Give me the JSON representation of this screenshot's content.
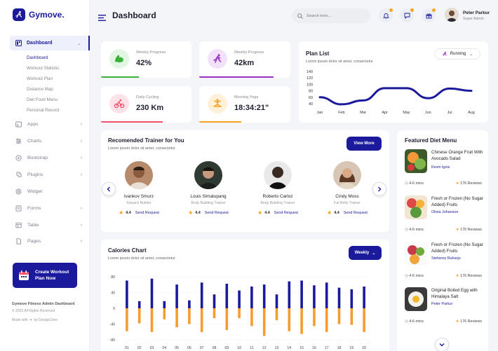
{
  "app": {
    "name": "Gymove."
  },
  "header": {
    "title": "Dashboard",
    "search_placeholder": "Search here...",
    "user_name": "Peter Parkur",
    "user_role": "Super Admin"
  },
  "sidebar": {
    "active": "Dashboard",
    "submenu": [
      "Dashboard",
      "Workout Statistic",
      "Workout Plan",
      "Distance Map",
      "Diet Food Menu",
      "Personal Record"
    ],
    "items": [
      "Apps",
      "Charts",
      "Bootstrap",
      "Plugins",
      "Widget",
      "Forms",
      "Table",
      "Pages"
    ],
    "promo": [
      "Create Workout",
      "Plan Now"
    ],
    "footer_title": "Gymove Fitness Admin Dashboard",
    "footer_copy": "© 2020 All Rights Reserved",
    "footer_made_a": "Made with",
    "footer_made_b": "by DesignZone"
  },
  "stats": [
    {
      "label": "Weekly Progress",
      "value": "42%",
      "color": "#3bb03a"
    },
    {
      "label": "Weekly Progress",
      "value": "42km",
      "color": "#9b2fc9"
    },
    {
      "label": "Daily Cycling",
      "value": "230 Km",
      "color": "#f24e6a"
    },
    {
      "label": "Morning Yoga",
      "value": "18:34:21\"",
      "color": "#f6a21d"
    }
  ],
  "plan_list": {
    "title": "Plan List",
    "subtitle": "Lorem ipsum dolor sit amet, consectetur",
    "dropdown": "Running"
  },
  "trainers": {
    "title": "Recomended Trainer for You",
    "subtitle": "Lorem ipsum dolor sit amet, consectetur",
    "button": "View More",
    "send_label": "Send Request",
    "list": [
      {
        "name": "Ivankov Smurz",
        "role": "Sixpack Builder",
        "rating": "4.4"
      },
      {
        "name": "Louis Simatupang",
        "role": "Body Building Trainer",
        "rating": "4.4"
      },
      {
        "name": "Roberto Carloz",
        "role": "Body Building Trainer",
        "rating": "4.4"
      },
      {
        "name": "Cindy Moss",
        "role": "Fat Belly Trainer",
        "rating": "4.4"
      }
    ]
  },
  "calories": {
    "title": "Calories Chart",
    "subtitle": "Lorem ipsum dolor sit amet, consectetur",
    "dropdown": "Weekly"
  },
  "diet": {
    "title": "Featured Diet Menu",
    "items": [
      {
        "name": "Chinese Orange Fruit With Avocado Salad",
        "author": "Kevin Ignis",
        "time": "4-6 mins",
        "reviews": "176 Reviews"
      },
      {
        "name": "Fresh or Frozen (No Sugar Added) Fruits",
        "author": "Olivia Johanson",
        "time": "4-6 mins",
        "reviews": "176 Reviews"
      },
      {
        "name": "Fresh or Frozen (No Sugar Added) Fruits",
        "author": "Stefanny Raharjo",
        "time": "4-6 mins",
        "reviews": "176 Reviews"
      },
      {
        "name": "Original Boiled Egg with Himalaya Salt",
        "author": "Peter Parkur",
        "time": "4-6 mins",
        "reviews": "176 Reviews"
      }
    ]
  },
  "chart_data": [
    {
      "type": "line",
      "title": "Plan List",
      "x": [
        "Jan",
        "Feb",
        "Mar",
        "Apr",
        "May",
        "Jun",
        "Jul",
        "Aug"
      ],
      "series": [
        {
          "values": [
            60,
            38,
            50,
            88,
            88,
            57,
            87,
            80
          ]
        }
      ],
      "yticks": [
        40,
        60,
        80,
        100,
        120,
        140
      ],
      "ylim": [
        40,
        140
      ],
      "color": "#1b1a9c"
    },
    {
      "type": "bar",
      "title": "Calories Chart",
      "x": [
        "01",
        "02",
        "03",
        "04",
        "05",
        "06",
        "07",
        "08",
        "09",
        "10",
        "11",
        "12",
        "13",
        "14",
        "15",
        "16",
        "17",
        "18",
        "19",
        "20"
      ],
      "series": [
        {
          "values": [
            70,
            18,
            75,
            18,
            60,
            20,
            65,
            35,
            62,
            45,
            55,
            60,
            35,
            68,
            70,
            58,
            65,
            52,
            48,
            55
          ],
          "color": "#1b1a9c"
        },
        {
          "values": [
            -58,
            -38,
            -60,
            -28,
            -48,
            -40,
            -60,
            -25,
            -55,
            -25,
            -45,
            -70,
            -30,
            -58,
            -65,
            -45,
            -60,
            -40,
            -42,
            -60
          ],
          "color": "#f59c2f"
        }
      ],
      "yticks": [
        80,
        40,
        0,
        -40,
        -80
      ],
      "ylim": [
        -85,
        85
      ]
    }
  ]
}
